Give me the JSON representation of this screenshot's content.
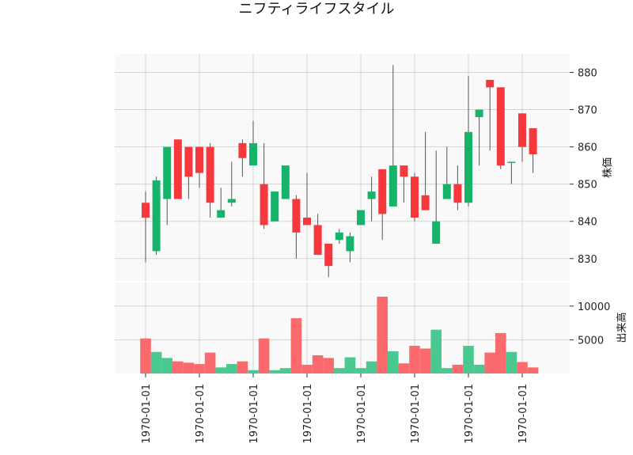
{
  "chart_data": {
    "type": "candlestick",
    "title": "ニフティライフスタイル",
    "ylabel": "株価",
    "volume_label": "出来高",
    "price_ylim": [
      824,
      885
    ],
    "price_ticks": [
      830,
      840,
      850,
      860,
      870,
      880
    ],
    "volume_ylim": [
      0,
      13500
    ],
    "volume_ticks": [
      5000,
      10000
    ],
    "x_tick_labels": [
      "1970-01-01",
      "1970-01-01",
      "1970-01-01",
      "1970-01-01",
      "1970-01-01",
      "1970-01-01",
      "1970-01-01",
      "1970-01-01"
    ],
    "x_tick_positions": [
      0,
      5,
      10,
      15,
      20,
      25,
      30,
      35
    ],
    "grid": true,
    "colors": {
      "up": "#16b36b",
      "down": "#f6373c",
      "up_volume": "#49c88f",
      "down_volume": "#fb6a6d",
      "wick": "#555555",
      "panel_bg": "#f9f9f9",
      "grid": "#cccccc"
    },
    "candles": [
      {
        "open": 845,
        "high": 848,
        "low": 829,
        "close": 841,
        "volume": 5200
      },
      {
        "open": 832,
        "high": 852,
        "low": 831,
        "close": 851,
        "volume": 3200
      },
      {
        "open": 846,
        "high": 860,
        "low": 839,
        "close": 860,
        "volume": 2300
      },
      {
        "open": 862,
        "high": 862,
        "low": 846,
        "close": 846,
        "volume": 1800
      },
      {
        "open": 860,
        "high": 860,
        "low": 846,
        "close": 852,
        "volume": 1600
      },
      {
        "open": 860,
        "high": 860,
        "low": 849,
        "close": 853,
        "volume": 1400
      },
      {
        "open": 860,
        "high": 861,
        "low": 841,
        "close": 845,
        "volume": 3100
      },
      {
        "open": 841,
        "high": 849,
        "low": 841,
        "close": 843,
        "volume": 900
      },
      {
        "open": 845,
        "high": 856,
        "low": 844,
        "close": 846,
        "volume": 1400
      },
      {
        "open": 861,
        "high": 862,
        "low": 852,
        "close": 857,
        "volume": 1800
      },
      {
        "open": 855,
        "high": 867,
        "low": 855,
        "close": 861,
        "volume": 500
      },
      {
        "open": 850,
        "high": 861,
        "low": 838,
        "close": 839,
        "volume": 5200
      },
      {
        "open": 840,
        "high": 848,
        "low": 840,
        "close": 848,
        "volume": 500
      },
      {
        "open": 846,
        "high": 855,
        "low": 846,
        "close": 855,
        "volume": 800
      },
      {
        "open": 846,
        "high": 847,
        "low": 830,
        "close": 837,
        "volume": 8200
      },
      {
        "open": 841,
        "high": 853,
        "low": 839,
        "close": 839,
        "volume": 1300
      },
      {
        "open": 839,
        "high": 842,
        "low": 831,
        "close": 831,
        "volume": 2700
      },
      {
        "open": 834,
        "high": 834,
        "low": 825,
        "close": 828,
        "volume": 2300
      },
      {
        "open": 835,
        "high": 838,
        "low": 834,
        "close": 837,
        "volume": 800
      },
      {
        "open": 832,
        "high": 837,
        "low": 829,
        "close": 836,
        "volume": 2400
      },
      {
        "open": 839,
        "high": 843,
        "low": 839,
        "close": 843,
        "volume": 800
      },
      {
        "open": 846,
        "high": 852,
        "low": 840,
        "close": 848,
        "volume": 1800
      },
      {
        "open": 854,
        "high": 854,
        "low": 835,
        "close": 842,
        "volume": 11400
      },
      {
        "open": 844,
        "high": 882,
        "low": 844,
        "close": 855,
        "volume": 3300
      },
      {
        "open": 855,
        "high": 855,
        "low": 845,
        "close": 852,
        "volume": 1500
      },
      {
        "open": 852,
        "high": 853,
        "low": 840,
        "close": 841,
        "volume": 4100
      },
      {
        "open": 847,
        "high": 864,
        "low": 843,
        "close": 843,
        "volume": 3700
      },
      {
        "open": 834,
        "high": 859,
        "low": 834,
        "close": 840,
        "volume": 6500
      },
      {
        "open": 846,
        "high": 860,
        "low": 846,
        "close": 850,
        "volume": 800
      },
      {
        "open": 850,
        "high": 855,
        "low": 843,
        "close": 845,
        "volume": 1300
      },
      {
        "open": 845,
        "high": 879,
        "low": 844,
        "close": 864,
        "volume": 4100
      },
      {
        "open": 868,
        "high": 870,
        "low": 855,
        "close": 870,
        "volume": 1300
      },
      {
        "open": 878,
        "high": 878,
        "low": 859,
        "close": 876,
        "volume": 3100
      },
      {
        "open": 876,
        "high": 876,
        "low": 854,
        "close": 855,
        "volume": 6000
      },
      {
        "open": 856,
        "high": 856,
        "low": 850,
        "close": 856,
        "volume": 3200
      },
      {
        "open": 869,
        "high": 869,
        "low": 856,
        "close": 860,
        "volume": 1700
      },
      {
        "open": 865,
        "high": 865,
        "low": 853,
        "close": 858,
        "volume": 900
      }
    ]
  }
}
